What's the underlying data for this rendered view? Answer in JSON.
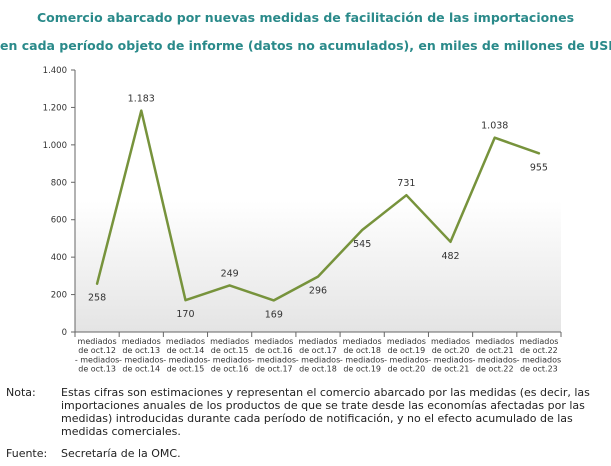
{
  "chart_data": {
    "type": "line",
    "title_line1": "Comercio abarcado por nuevas medidas de facilitación de las importaciones",
    "title_line2": "en cada período objeto de informe (datos no acumulados), en miles de millones de USD",
    "categories": [
      [
        "mediados",
        "de oct.12",
        "- mediados",
        "de oct.13"
      ],
      [
        "mediados",
        "de oct.13",
        "- mediados",
        "de oct.14"
      ],
      [
        "mediados",
        "de oct.14",
        "- mediados",
        "de oct.15"
      ],
      [
        "mediados",
        "de oct.15",
        "- mediados",
        "de oct.16"
      ],
      [
        "mediados",
        "de oct.16",
        "- mediados",
        "de oct.17"
      ],
      [
        "mediados",
        "de oct.17",
        "- mediados",
        "de oct.18"
      ],
      [
        "mediados",
        "de oct.18",
        "- mediados",
        "de oct.19"
      ],
      [
        "mediados",
        "de oct.19",
        "- mediados",
        "de oct.20"
      ],
      [
        "mediados",
        "de oct.20",
        "- mediados",
        "de oct.21"
      ],
      [
        "mediados",
        "de oct.21",
        "- mediados",
        "de oct.22"
      ],
      [
        "mediados",
        "de oct.22",
        "- mediados",
        "de oct.23"
      ]
    ],
    "values": [
      258,
      1183,
      170,
      249,
      169,
      296,
      545,
      731,
      482,
      1038,
      955
    ],
    "value_labels": [
      "258",
      "1.183",
      "170",
      "249",
      "169",
      "296",
      "545",
      "731",
      "482",
      "1.038",
      "955"
    ],
    "ylim": [
      0,
      1400
    ],
    "yticks": [
      0,
      200,
      400,
      600,
      800,
      1000,
      1200,
      1400
    ],
    "ytick_labels": [
      "0",
      "200",
      "400",
      "600",
      "800",
      "1.000",
      "1.200",
      "1.400"
    ],
    "line_color": "#77933c",
    "grid": false
  },
  "note": {
    "label": "Nota:",
    "text": "Estas cifras son estimaciones y representan el comercio abarcado por las medidas (es decir, las importaciones anuales de los productos de que se trate desde las economías afectadas por las medidas) introducidas durante cada período de notificación, y no el efecto acumulado de las medidas comerciales."
  },
  "source": {
    "label": "Fuente:",
    "text": "Secretaría de la OMC."
  }
}
